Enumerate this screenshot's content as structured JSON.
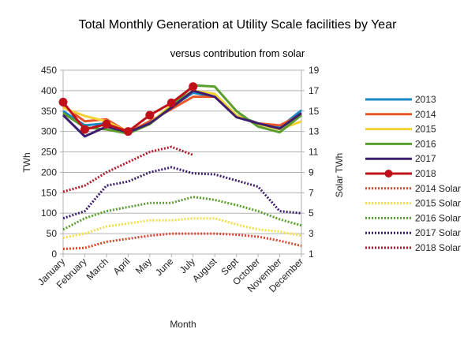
{
  "chart_data": {
    "type": "line",
    "title": "Total Monthly Generation at Utility Scale facilities by Year",
    "subtitle": "versus contribution from solar",
    "xlabel": "Month",
    "ylabel": "TWh",
    "y2label": "Solar TWh",
    "categories": [
      "January",
      "February",
      "March",
      "April",
      "May",
      "June",
      "July",
      "August",
      "Sept",
      "October",
      "November",
      "December"
    ],
    "ylim": [
      0,
      450
    ],
    "yticks": [
      "0",
      "50",
      "100",
      "150",
      "200",
      "250",
      "300",
      "350",
      "400",
      "450"
    ],
    "y2lim": [
      1,
      19
    ],
    "y2ticks": [
      "1",
      "3",
      "5",
      "7",
      "9",
      "11",
      "13",
      "15",
      "17",
      "19"
    ],
    "grid": true,
    "legend_position": "right",
    "series": [
      {
        "name": "2013",
        "axis": "left",
        "style": "solid",
        "color": "#1a86c4",
        "values": [
          350,
          315,
          320,
          297,
          320,
          360,
          395,
          385,
          340,
          320,
          310,
          352
        ]
      },
      {
        "name": "2014",
        "axis": "left",
        "style": "solid",
        "color": "#e8572a",
        "values": [
          362,
          325,
          330,
          298,
          325,
          355,
          385,
          385,
          338,
          320,
          315,
          342
        ]
      },
      {
        "name": "2015",
        "axis": "left",
        "style": "solid",
        "color": "#f5d033",
        "values": [
          358,
          338,
          325,
          298,
          320,
          365,
          400,
          392,
          340,
          318,
          305,
          325
        ]
      },
      {
        "name": "2016",
        "axis": "left",
        "style": "solid",
        "color": "#5a9e2f",
        "values": [
          345,
          310,
          305,
          295,
          318,
          360,
          413,
          410,
          350,
          312,
          298,
          340
        ]
      },
      {
        "name": "2017",
        "axis": "left",
        "style": "solid",
        "color": "#3d1f6e",
        "values": [
          340,
          288,
          312,
          298,
          320,
          358,
          400,
          385,
          335,
          320,
          307,
          345
        ]
      },
      {
        "name": "2018",
        "axis": "left",
        "style": "solid-marker",
        "color": "#c0111a",
        "values": [
          372,
          305,
          318,
          300,
          340,
          370,
          410,
          null,
          null,
          null,
          null,
          null
        ]
      },
      {
        "name": "2014 Solar",
        "axis": "right",
        "style": "dotted",
        "color": "#d9462a",
        "values": [
          1.5,
          1.6,
          2.2,
          2.5,
          2.8,
          3.0,
          3.0,
          3.0,
          2.9,
          2.7,
          2.3,
          1.8
        ]
      },
      {
        "name": "2015 Solar",
        "axis": "right",
        "style": "dotted",
        "color": "#f2df4a",
        "values": [
          2.6,
          3.0,
          3.7,
          4.0,
          4.3,
          4.3,
          4.5,
          4.5,
          3.9,
          3.4,
          3.2,
          2.8
        ]
      },
      {
        "name": "2016 Solar",
        "axis": "right",
        "style": "dotted",
        "color": "#5a9e2f",
        "values": [
          3.4,
          4.5,
          5.2,
          5.6,
          6.0,
          6.0,
          6.6,
          6.3,
          5.8,
          5.2,
          4.4,
          3.8
        ]
      },
      {
        "name": "2017 Solar",
        "axis": "right",
        "style": "dotted",
        "color": "#3d1f6e",
        "values": [
          4.5,
          5.2,
          7.7,
          8.1,
          9.0,
          9.5,
          8.9,
          8.8,
          8.2,
          7.6,
          5.2,
          5.0
        ]
      },
      {
        "name": "2018 Solar",
        "axis": "right",
        "style": "dotted",
        "color": "#b01a2a",
        "values": [
          7.1,
          7.7,
          9.0,
          10.0,
          11.0,
          11.5,
          10.7,
          null,
          null,
          null,
          null,
          null
        ]
      }
    ]
  }
}
